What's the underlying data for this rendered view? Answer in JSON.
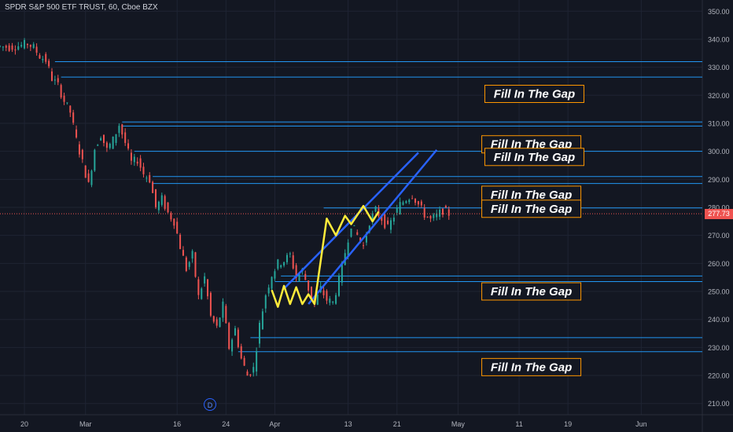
{
  "header": {
    "title": "SPDR S&P 500 ETF TRUST, 60, Cboe BZX"
  },
  "colors": {
    "background": "#131722",
    "grid": "#1f2433",
    "up_candle": "#26a69a",
    "down_candle": "#ef5350",
    "gap_line": "#2196f3",
    "channel": "#2962ff",
    "zigzag": "#ffeb3b",
    "annotation_border": "#ff9800",
    "price_tag": "#ef5350"
  },
  "markers": {
    "event_label": "D"
  },
  "chart_data": {
    "type": "candlestick",
    "symbol": "SPDR S&P 500 ETF TRUST",
    "interval": "60",
    "exchange": "Cboe BZX",
    "y_axis": {
      "ylim": [
        206,
        354
      ],
      "ticks": [
        210,
        220,
        230,
        240,
        250,
        260,
        270,
        280,
        290,
        300,
        310,
        320,
        330,
        340,
        350
      ]
    },
    "x_axis": {
      "ticks": [
        {
          "label": "20",
          "t": 0
        },
        {
          "label": "Mar",
          "t": 10
        },
        {
          "label": "16",
          "t": 25
        },
        {
          "label": "24",
          "t": 33
        },
        {
          "label": "Apr",
          "t": 41
        },
        {
          "label": "13",
          "t": 53
        },
        {
          "label": "21",
          "t": 61
        },
        {
          "label": "May",
          "t": 71
        },
        {
          "label": "11",
          "t": 81
        },
        {
          "label": "19",
          "t": 89
        },
        {
          "label": "Jun",
          "t": 101
        }
      ],
      "tlim": [
        -4,
        111
      ]
    },
    "current_price": 277.73,
    "price_path": [
      [
        -4,
        337.5
      ],
      [
        -2,
        337.2
      ],
      [
        0,
        337.8
      ],
      [
        1,
        338.5
      ],
      [
        2,
        337.0
      ],
      [
        3,
        334.0
      ],
      [
        4,
        332.5
      ],
      [
        5,
        326.0
      ],
      [
        6,
        323.5
      ],
      [
        7,
        318.0
      ],
      [
        8,
        314.0
      ],
      [
        9,
        304.0
      ],
      [
        10,
        296.0
      ],
      [
        11,
        288.0
      ],
      [
        12,
        301.0
      ],
      [
        13,
        306.0
      ],
      [
        14,
        300.5
      ],
      [
        15,
        304.0
      ],
      [
        16,
        309.5
      ],
      [
        17,
        303.0
      ],
      [
        18,
        296.0
      ],
      [
        19,
        297.0
      ],
      [
        20,
        292.0
      ],
      [
        21,
        290.0
      ],
      [
        22,
        280.0
      ],
      [
        23,
        283.0
      ],
      [
        24,
        278.0
      ],
      [
        25,
        275.0
      ],
      [
        26,
        266.0
      ],
      [
        27,
        258.0
      ],
      [
        28,
        263.0
      ],
      [
        29,
        248.0
      ],
      [
        30,
        255.0
      ],
      [
        31,
        241.0
      ],
      [
        32,
        237.0
      ],
      [
        33,
        245.0
      ],
      [
        34,
        230.0
      ],
      [
        35,
        236.5
      ],
      [
        36,
        226.0
      ],
      [
        37,
        220.0
      ],
      [
        38,
        222.5
      ],
      [
        39,
        238.0
      ],
      [
        40,
        249.0
      ],
      [
        41,
        256.0
      ],
      [
        42,
        260.0
      ],
      [
        43,
        261.0
      ],
      [
        44,
        263.0
      ],
      [
        45,
        255.0
      ],
      [
        46,
        257.5
      ],
      [
        47,
        251.0
      ],
      [
        48,
        245.5
      ],
      [
        49,
        251.0
      ],
      [
        50,
        247.0
      ],
      [
        51,
        246.0
      ],
      [
        52,
        254.0
      ],
      [
        53,
        264.0
      ],
      [
        54,
        274.0
      ],
      [
        55,
        270.0
      ],
      [
        56,
        266.0
      ],
      [
        57,
        275.0
      ],
      [
        58,
        279.0
      ],
      [
        59,
        276.0
      ],
      [
        60,
        272.5
      ],
      [
        61,
        277.0
      ],
      [
        62,
        281.0
      ],
      [
        63,
        283.0
      ],
      [
        64,
        284.5
      ],
      [
        65,
        281.0
      ],
      [
        66,
        277.5
      ],
      [
        67,
        275.5
      ],
      [
        68,
        277.0
      ],
      [
        69,
        279.0
      ],
      [
        70,
        277.73
      ]
    ],
    "gap_lines": [
      {
        "price": 332.0,
        "t_start": 5
      },
      {
        "price": 326.5,
        "t_start": 6
      },
      {
        "price": 310.5,
        "t_start": 16
      },
      {
        "price": 309.0,
        "t_start": 16
      },
      {
        "price": 300.0,
        "t_start": 18
      },
      {
        "price": 291.0,
        "t_start": 21
      },
      {
        "price": 288.5,
        "t_start": 21
      },
      {
        "price": 279.8,
        "t_start": 49
      },
      {
        "price": 255.5,
        "t_start": 42
      },
      {
        "price": 253.5,
        "t_start": 41
      },
      {
        "price": 233.5,
        "t_start": 37
      },
      {
        "price": 228.5,
        "t_start": 35
      }
    ],
    "channel": {
      "lower": [
        [
          46.5,
          245.5
        ],
        [
          67.5,
          300.5
        ]
      ],
      "upper": [
        [
          42.5,
          251.0
        ],
        [
          64.5,
          299.5
        ]
      ]
    },
    "zigzag": [
      [
        40.5,
        250.5
      ],
      [
        41.5,
        244.5
      ],
      [
        42.5,
        252.0
      ],
      [
        43.5,
        245.5
      ],
      [
        44.5,
        251.5
      ],
      [
        45.5,
        245.5
      ],
      [
        46.5,
        249.0
      ],
      [
        47.5,
        245.5
      ],
      [
        49.5,
        276.0
      ],
      [
        51.0,
        270.0
      ],
      [
        52.5,
        277.0
      ],
      [
        53.5,
        274.0
      ],
      [
        55.5,
        280.5
      ],
      [
        57.0,
        275.0
      ],
      [
        58.0,
        278.5
      ]
    ],
    "annotations": [
      {
        "text": "Fill In The Gap",
        "price": 320.5,
        "t": 83.5
      },
      {
        "text": "Fill In The Gap",
        "price": 302.5,
        "t": 83.0
      },
      {
        "text": "Fill In The Gap",
        "price": 298.0,
        "t": 83.5
      },
      {
        "text": "Fill In The Gap",
        "price": 284.5,
        "t": 83.0
      },
      {
        "text": "Fill In The Gap",
        "price": 279.5,
        "t": 83.0
      },
      {
        "text": "Fill In The Gap",
        "price": 250.0,
        "t": 83.0
      },
      {
        "text": "Fill In The Gap",
        "price": 223.0,
        "t": 83.0
      }
    ]
  }
}
